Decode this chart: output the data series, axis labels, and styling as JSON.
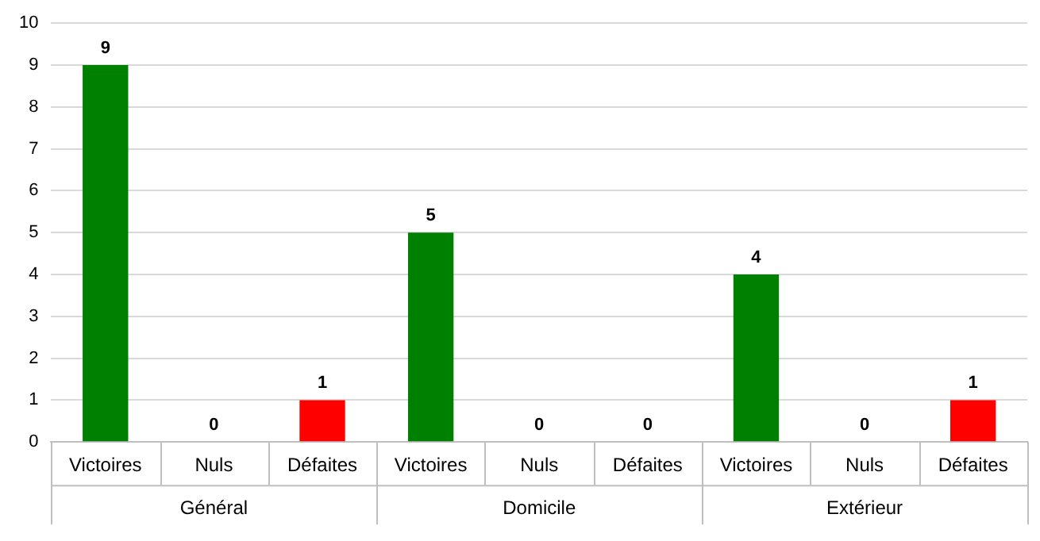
{
  "chart_data": {
    "type": "bar",
    "categories": [
      "Victoires",
      "Nuls",
      "Défaites",
      "Victoires",
      "Nuls",
      "Défaites",
      "Victoires",
      "Nuls",
      "Défaites"
    ],
    "values": [
      9,
      0,
      1,
      5,
      0,
      0,
      4,
      0,
      1
    ],
    "colors": [
      "#008000",
      "#008000",
      "#ff0000",
      "#008000",
      "#008000",
      "#ff0000",
      "#008000",
      "#008000",
      "#ff0000"
    ],
    "ylim": [
      0,
      10
    ],
    "yticks": [
      0,
      1,
      2,
      3,
      4,
      5,
      6,
      7,
      8,
      9,
      10
    ],
    "grid": "y",
    "legend": false,
    "data_labels": true,
    "annotations": [
      "Général",
      "Domicile",
      "Extérieur"
    ]
  }
}
